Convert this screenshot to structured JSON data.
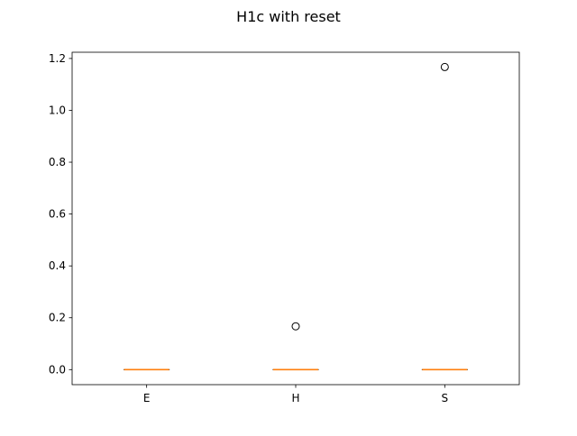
{
  "chart_data": {
    "type": "box",
    "title": "H1c with reset",
    "xlabel": "",
    "ylabel": "",
    "categories": [
      "E",
      "H",
      "S"
    ],
    "ylim": [
      -0.058,
      1.224
    ],
    "yticks": [
      0.0,
      0.2,
      0.4,
      0.6,
      0.8,
      1.0,
      1.2
    ],
    "ytick_labels": [
      "0.0",
      "0.2",
      "0.4",
      "0.6",
      "0.8",
      "1.0",
      "1.2"
    ],
    "boxes": [
      {
        "category": "E",
        "min": 0.0,
        "q1": 0.0,
        "median": 0.0,
        "q3": 0.0,
        "max": 0.0,
        "outliers": []
      },
      {
        "category": "H",
        "min": 0.0,
        "q1": 0.0,
        "median": 0.0,
        "q3": 0.0,
        "max": 0.0,
        "outliers": [
          0.167
        ]
      },
      {
        "category": "S",
        "min": 0.0,
        "q1": 0.0,
        "median": 0.0,
        "q3": 0.0,
        "max": 0.0,
        "outliers": [
          1.167
        ]
      }
    ],
    "grid": false,
    "colors": {
      "box": "#000000",
      "median": "#ff7f0e",
      "outlier_edge": "#000000"
    }
  }
}
